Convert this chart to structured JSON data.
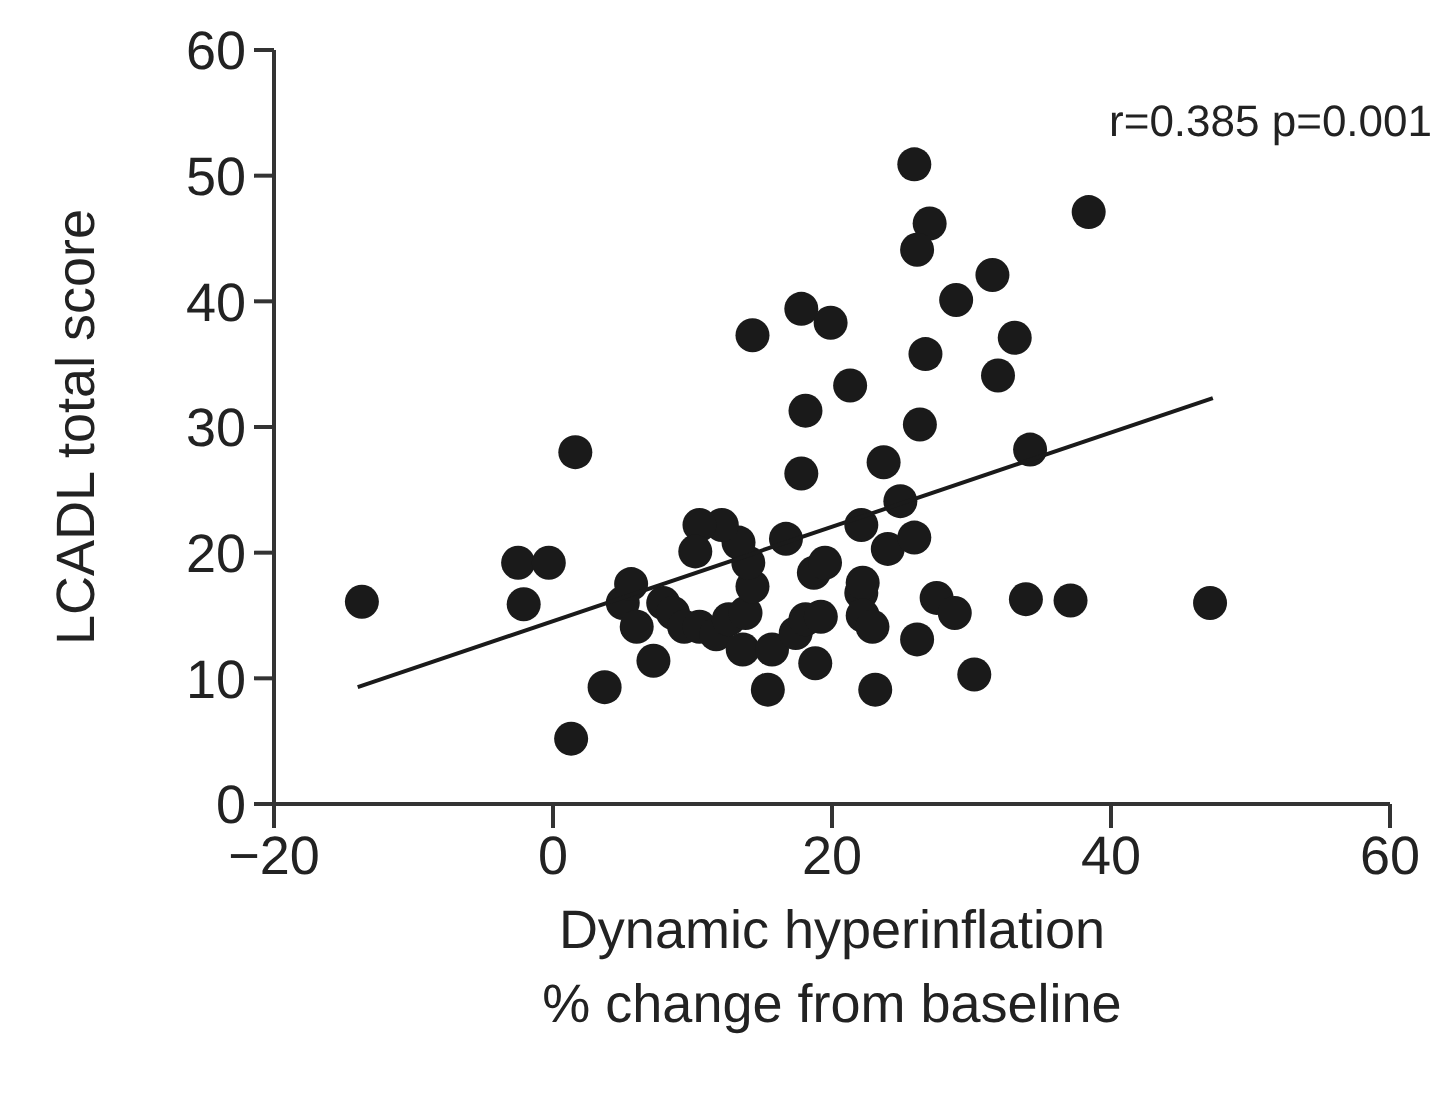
{
  "chart_data": {
    "type": "scatter",
    "xlabel": "Dynamic hyperinflation\n% change from baseline",
    "ylabel": "LCADL total score",
    "xlim": [
      -20,
      60
    ],
    "ylim": [
      0,
      60
    ],
    "xticks": [
      {
        "value": -20,
        "label": "−20"
      },
      0,
      20,
      40,
      60
    ],
    "yticks": [
      0,
      10,
      20,
      30,
      40,
      50,
      60
    ],
    "marker": "circle",
    "annotations": [
      "r=0.385 p=0.001"
    ],
    "series": [
      {
        "color": "#1a1a1a",
        "x": [
          -13.7,
          -2.5,
          -0.3,
          -2.1,
          1.6,
          1.3,
          3.7,
          5.0,
          5.6,
          6.0,
          7.2,
          7.9,
          8.6,
          9.4,
          10.5,
          11.7,
          12.6,
          13.6,
          13.8,
          14.3,
          14.0,
          13.3,
          12.1,
          10.5,
          10.2,
          14.3,
          15.4,
          15.7,
          16.7,
          17.8,
          18.1,
          17.8,
          19.9,
          21.3,
          17.4,
          18.1,
          19.2,
          18.8,
          18.7,
          19.5,
          22.1,
          22.1,
          23.1,
          25.9,
          27.0,
          26.1,
          38.4,
          31.5,
          28.9,
          26.7,
          33.1,
          31.9,
          26.3,
          23.7,
          34.2,
          24.9,
          24.0,
          25.9,
          22.2,
          22.2,
          22.9,
          27.5,
          28.8,
          26.1,
          30.2,
          33.9,
          37.1,
          47.1
        ],
        "values": [
          16.1,
          19.2,
          19.2,
          15.9,
          28.0,
          5.2,
          9.3,
          16.0,
          17.5,
          14.1,
          11.4,
          16.0,
          15.2,
          14.1,
          14.1,
          13.5,
          14.7,
          12.3,
          15.2,
          17.3,
          19.2,
          20.8,
          22.2,
          22.2,
          20.1,
          37.3,
          9.1,
          12.3,
          21.1,
          26.3,
          31.3,
          39.4,
          38.3,
          33.3,
          13.6,
          14.7,
          14.9,
          11.2,
          18.4,
          19.2,
          22.2,
          16.8,
          9.1,
          50.9,
          46.2,
          44.1,
          47.1,
          42.1,
          40.1,
          35.8,
          37.1,
          34.1,
          30.2,
          27.2,
          28.2,
          24.1,
          20.3,
          21.2,
          17.6,
          15.0,
          14.1,
          16.4,
          15.2,
          13.1,
          10.3,
          16.3,
          16.2,
          16.0
        ]
      },
      {
        "type": "line",
        "color": "#1a1a1a",
        "marker": "none",
        "x": [
          -14,
          47.3
        ],
        "values": [
          9.3,
          32.3
        ]
      }
    ]
  }
}
